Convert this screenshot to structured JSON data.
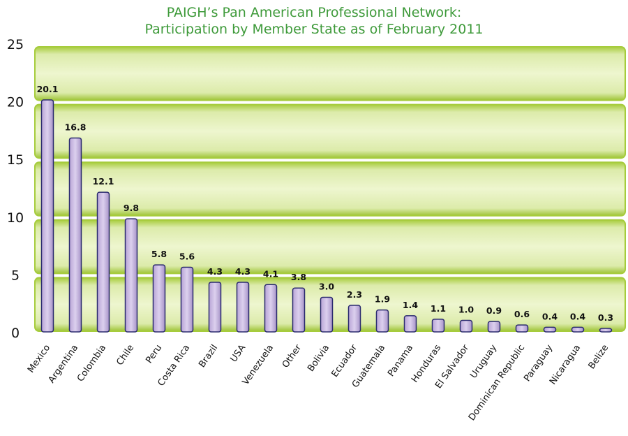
{
  "chart_data": {
    "type": "bar",
    "title_line1": "PAIGH’s Pan American Professional Network:",
    "title_line2": "Participation by Member State as of February 2011",
    "xlabel": "",
    "ylabel": "",
    "ylim": [
      0,
      25
    ],
    "yticks": [
      0,
      5,
      10,
      15,
      20,
      25
    ],
    "grid": "horizontal bands",
    "categories": [
      "Mexico",
      "Argentina",
      "Colombia",
      "Chile",
      "Peru",
      "Costa Rica",
      "Brazil",
      "USA",
      "Venezuela",
      "Other",
      "Bolivia",
      "Ecuador",
      "Guatemala",
      "Panama",
      "Honduras",
      "El Salvador",
      "Uruguay",
      "Dominican Republic",
      "Paraguay",
      "Nicaragua",
      "Belize"
    ],
    "values": [
      20.1,
      16.8,
      12.1,
      9.8,
      5.8,
      5.6,
      4.3,
      4.3,
      4.1,
      3.8,
      3.0,
      2.3,
      1.9,
      1.4,
      1.1,
      1.0,
      0.9,
      0.6,
      0.4,
      0.4,
      0.3
    ],
    "value_labels": [
      "20.1",
      "16.8",
      "12.1",
      "9.8",
      "5.8",
      "5.6",
      "4.3",
      "4.3",
      "4.1",
      "3.8",
      "3.0",
      "2.3",
      "1.9",
      "1.4",
      "1.1",
      "1.0",
      "0.9",
      "0.6",
      "0.4",
      "0.4",
      "0.3"
    ],
    "colors": {
      "title": "#3e9a3a",
      "band_outer": "#a6cc3c",
      "band_inner": "#e6f1bd",
      "bar_fill": "#c8b6e0",
      "bar_stroke": "#2a2a6e"
    }
  }
}
